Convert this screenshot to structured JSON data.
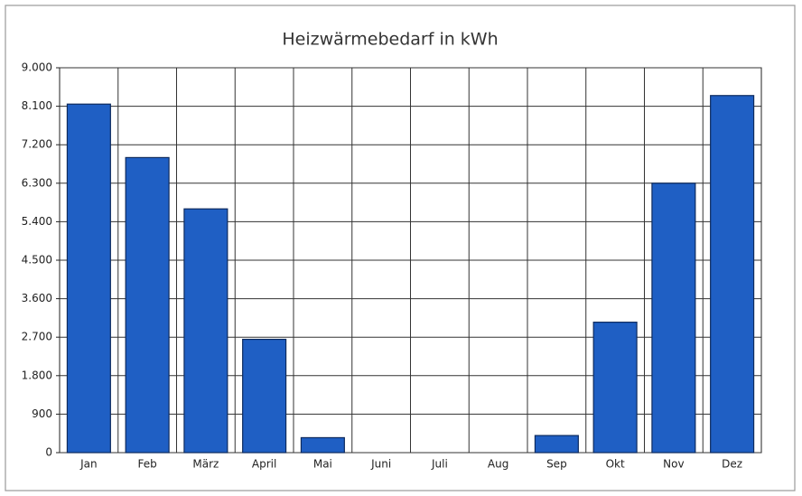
{
  "chart_data": {
    "type": "bar",
    "title": "Heizwärmebedarf in kWh",
    "categories": [
      "Jan",
      "Feb",
      "März",
      "April",
      "Mai",
      "Juni",
      "Juli",
      "Aug",
      "Sep",
      "Okt",
      "Nov",
      "Dez"
    ],
    "values": [
      8150,
      6900,
      5700,
      2650,
      350,
      0,
      0,
      0,
      400,
      3050,
      6300,
      8350
    ],
    "color": "#1f5fc4",
    "ylim": [
      0,
      9000
    ],
    "yticks": [
      0,
      900,
      {
        "value": 1800,
        "label": "1.800"
      },
      {
        "value": 2700,
        "label": "2.700"
      },
      {
        "value": 3600,
        "label": "3.600"
      },
      {
        "value": 4500,
        "label": "4.500"
      },
      {
        "value": 5400,
        "label": "5.400"
      },
      {
        "value": 6300,
        "label": "6.300"
      },
      {
        "value": 7200,
        "label": "7.200"
      },
      {
        "value": 8100,
        "label": "8.100"
      },
      {
        "value": 9000,
        "label": "9.000"
      }
    ],
    "grid": true
  }
}
